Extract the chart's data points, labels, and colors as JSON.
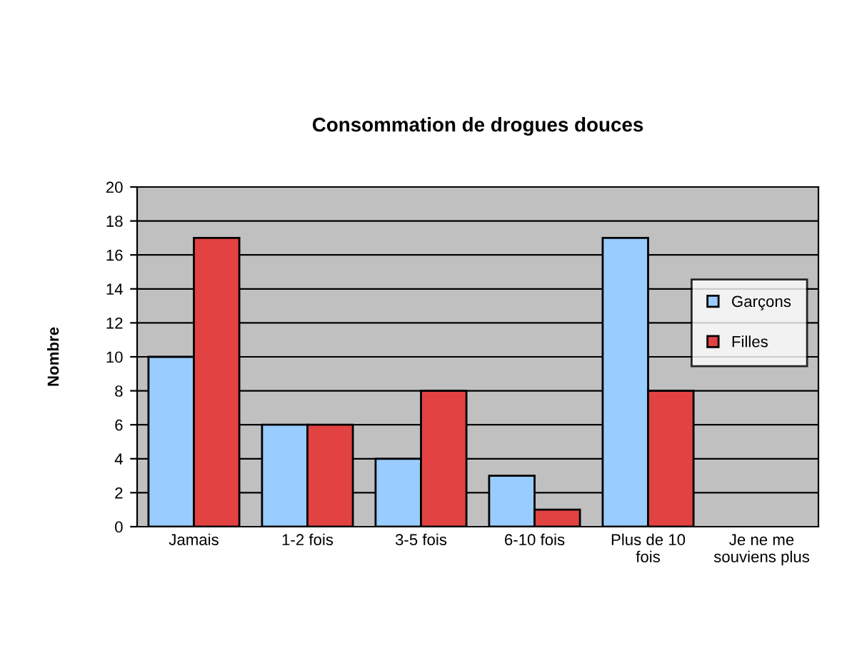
{
  "chart_data": {
    "type": "bar",
    "title": "Consommation de drogues douces",
    "ylabel": "Nombre",
    "categories": [
      "Jamais",
      "1-2 fois",
      "3-5 fois",
      "6-10 fois",
      "Plus de 10\nfois",
      "Je ne me\nsouviens plus"
    ],
    "series": [
      {
        "name": "Garçons",
        "color": "#99ccff",
        "values": [
          10,
          6,
          4,
          3,
          17,
          0
        ]
      },
      {
        "name": "Filles",
        "color": "#e34242",
        "values": [
          17,
          6,
          8,
          1,
          8,
          0
        ]
      }
    ],
    "ylim": [
      0,
      20
    ],
    "yticks": [
      0,
      2,
      4,
      6,
      8,
      10,
      12,
      14,
      16,
      18,
      20
    ],
    "grid": "y",
    "legend": "right"
  }
}
